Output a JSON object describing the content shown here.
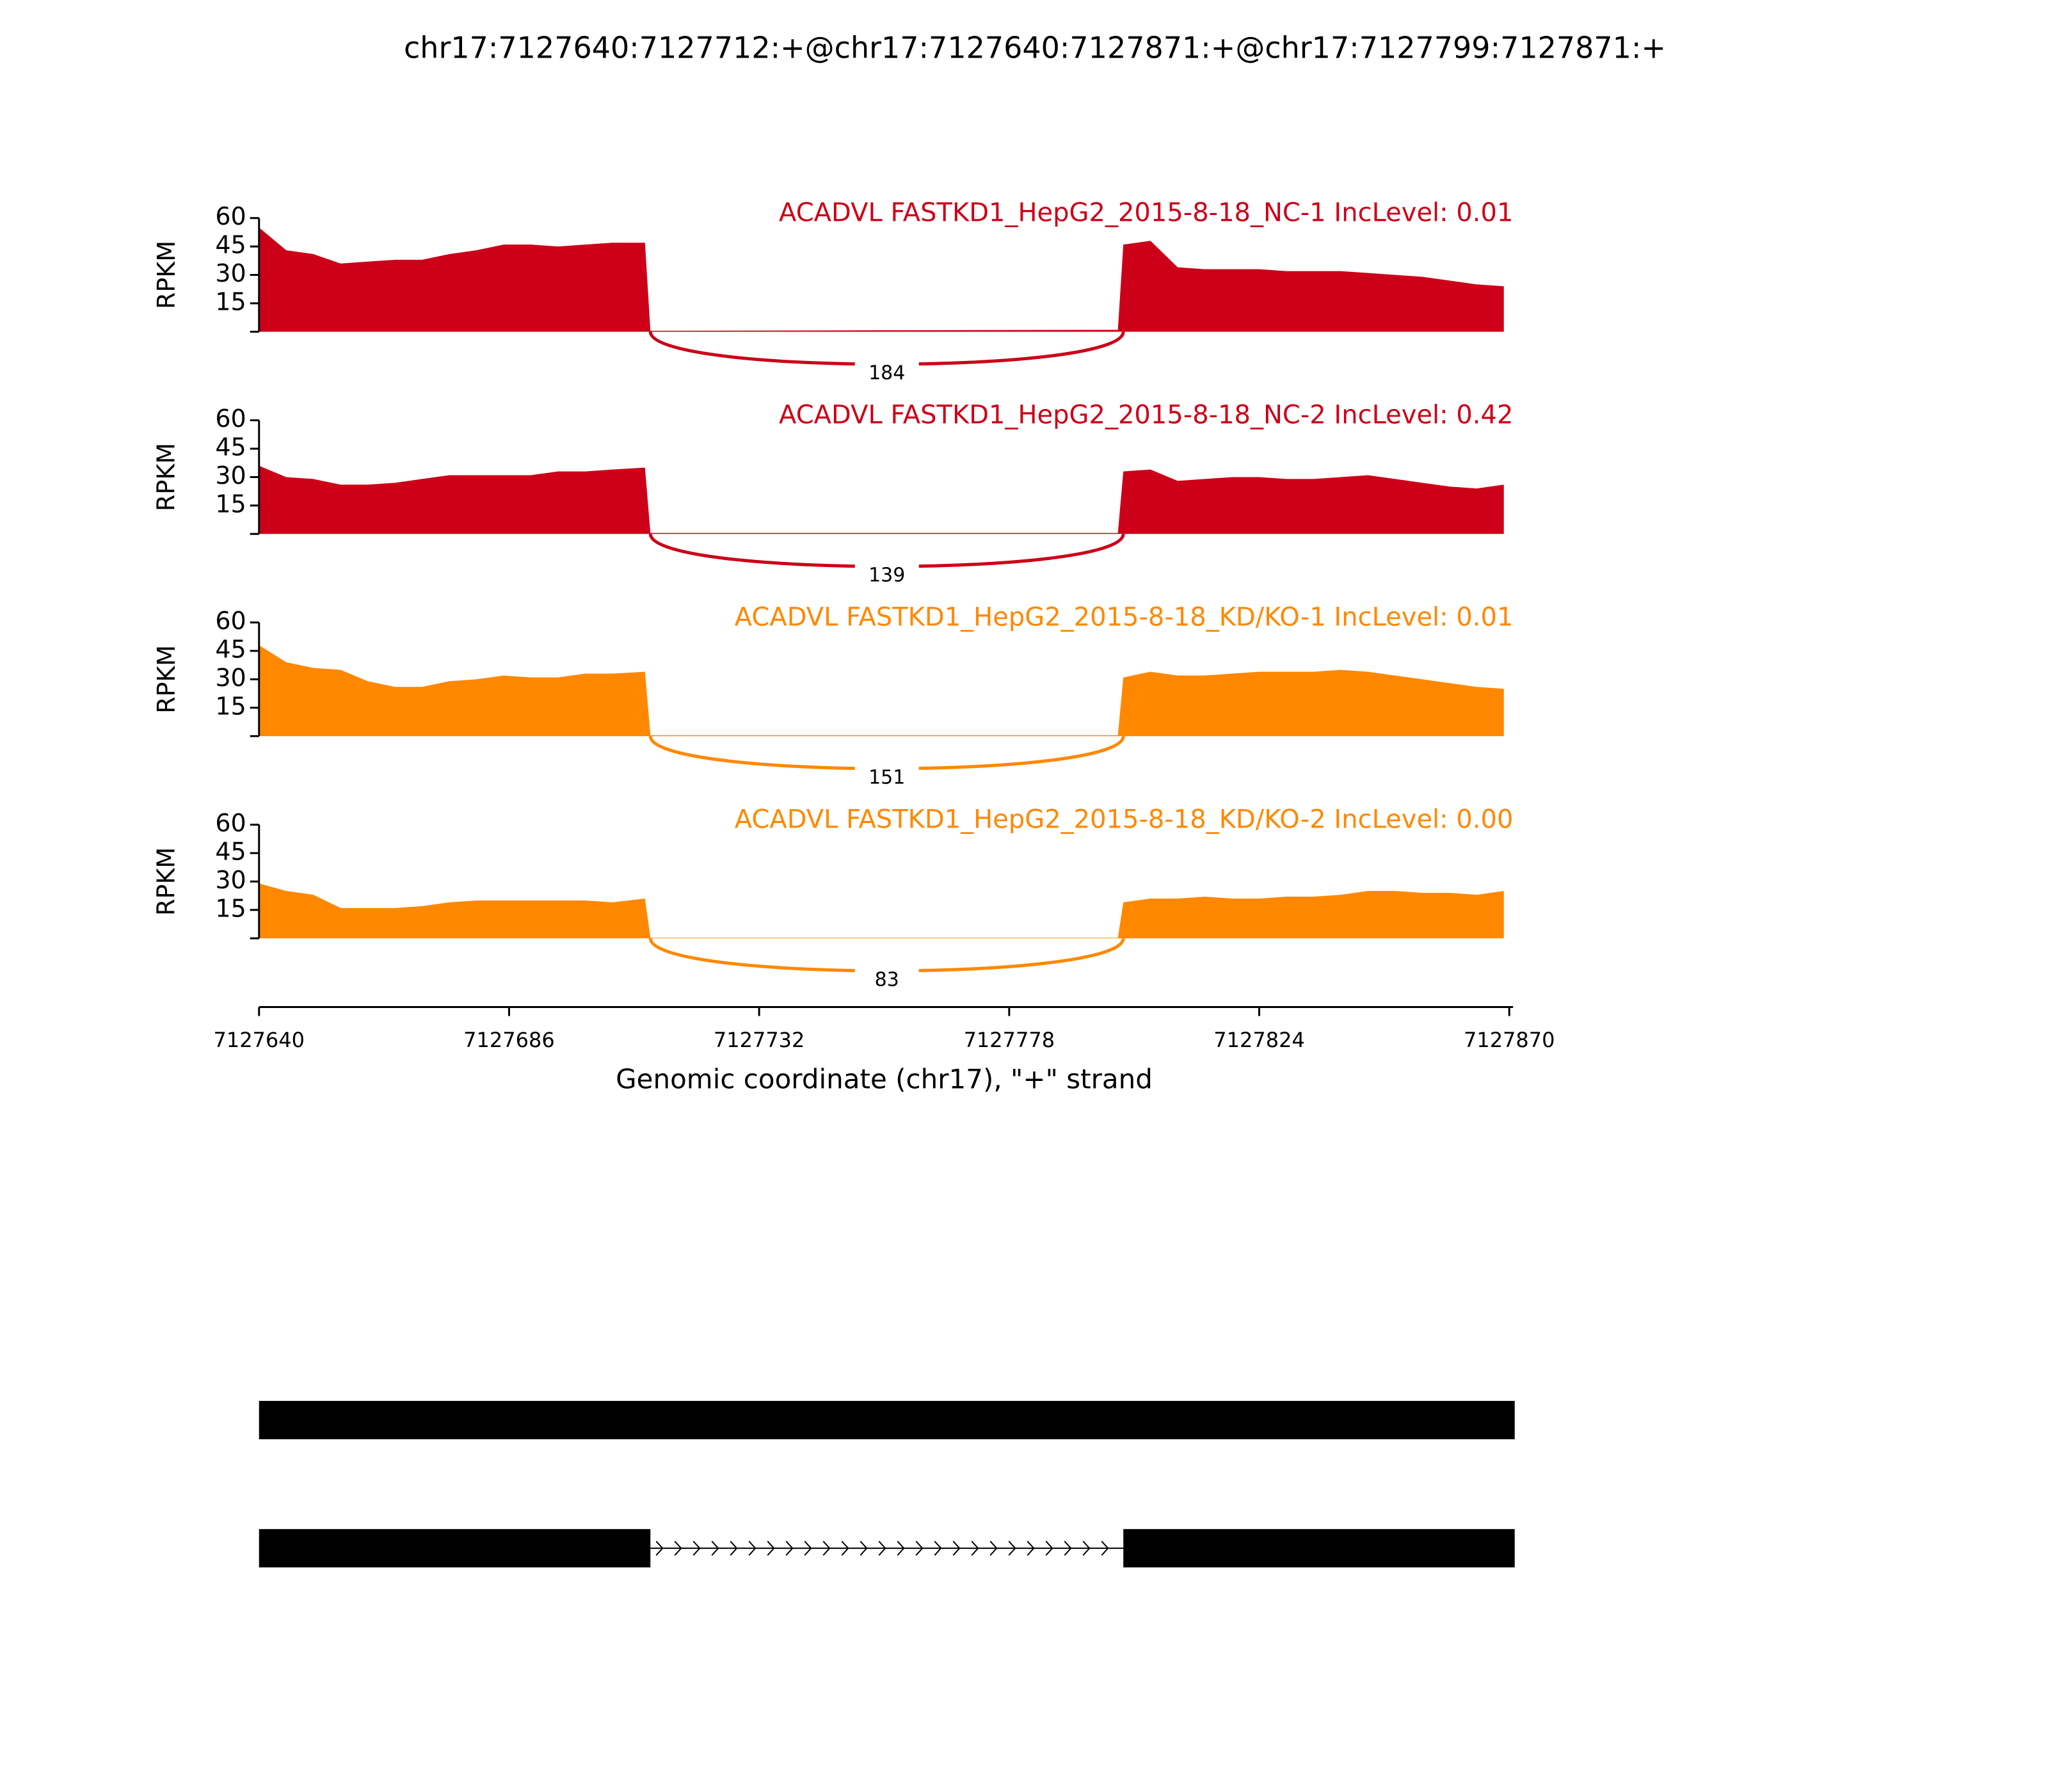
{
  "chart_data": {
    "type": "sashimi",
    "title": "chr17:7127640:7127712:+@chr17:7127640:7127871:+@chr17:7127799:7127871:+",
    "xlabel": "Genomic coordinate (chr17), \"+\" strand",
    "ylabel": "RPKM",
    "xlim": [
      7127640,
      7127870
    ],
    "xticks": [
      7127640,
      7127686,
      7127732,
      7127778,
      7127824,
      7127870
    ],
    "ylim": [
      0,
      60
    ],
    "yticks": [
      15,
      30,
      45,
      60
    ],
    "x": [
      7127640,
      7127645,
      7127650,
      7127655,
      7127660,
      7127665,
      7127670,
      7127675,
      7127680,
      7127685,
      7127690,
      7127695,
      7127700,
      7127705,
      7127711,
      7127712,
      7127798,
      7127799,
      7127804,
      7127809,
      7127814,
      7127819,
      7127824,
      7127829,
      7127834,
      7127839,
      7127844,
      7127849,
      7127854,
      7127859,
      7127864,
      7127869
    ],
    "series": [
      {
        "name": "ACADVL FASTKD1_HepG2_2015-8-18_NC-1 IncLevel: 0.01",
        "color": "#cc0018",
        "values": [
          55,
          43,
          41,
          36,
          37,
          38,
          38,
          41,
          43,
          46,
          46,
          45,
          46,
          47,
          47,
          0.5,
          1,
          46,
          48,
          34,
          33,
          33,
          33,
          32,
          32,
          32,
          31,
          30,
          29,
          27,
          25,
          24
        ],
        "junctions": [
          {
            "start": 7127712,
            "end": 7127799,
            "count": 184
          }
        ]
      },
      {
        "name": "ACADVL FASTKD1_HepG2_2015-8-18_NC-2 IncLevel: 0.42",
        "color": "#cc0018",
        "values": [
          36,
          30,
          29,
          26,
          26,
          27,
          29,
          31,
          31,
          31,
          31,
          33,
          33,
          34,
          35,
          0.5,
          0.5,
          33,
          34,
          28,
          29,
          30,
          30,
          29,
          29,
          30,
          31,
          29,
          27,
          25,
          24,
          26
        ],
        "junctions": [
          {
            "start": 7127712,
            "end": 7127799,
            "count": 139
          }
        ]
      },
      {
        "name": "ACADVL FASTKD1_HepG2_2015-8-18_KD/KO-1 IncLevel: 0.01",
        "color": "#ff8800",
        "values": [
          48,
          39,
          36,
          35,
          29,
          26,
          26,
          29,
          30,
          32,
          31,
          31,
          33,
          33,
          34,
          0.5,
          0.5,
          31,
          34,
          32,
          32,
          33,
          34,
          34,
          34,
          35,
          34,
          32,
          30,
          28,
          26,
          25
        ],
        "junctions": [
          {
            "start": 7127712,
            "end": 7127799,
            "count": 151
          }
        ]
      },
      {
        "name": "ACADVL FASTKD1_HepG2_2015-8-18_KD/KO-2 IncLevel: 0.00",
        "color": "#ff8800",
        "values": [
          29,
          25,
          23,
          16,
          16,
          16,
          17,
          19,
          20,
          20,
          20,
          20,
          20,
          19,
          21,
          0.3,
          0.3,
          19,
          21,
          21,
          22,
          21,
          21,
          22,
          22,
          23,
          25,
          25,
          24,
          24,
          23,
          25
        ],
        "junctions": [
          {
            "start": 7127712,
            "end": 7127799,
            "count": 83
          }
        ]
      }
    ],
    "transcripts": [
      {
        "exons": [
          [
            7127640,
            7127871
          ]
        ]
      },
      {
        "exons": [
          [
            7127640,
            7127712
          ],
          [
            7127799,
            7127871
          ]
        ]
      }
    ]
  }
}
